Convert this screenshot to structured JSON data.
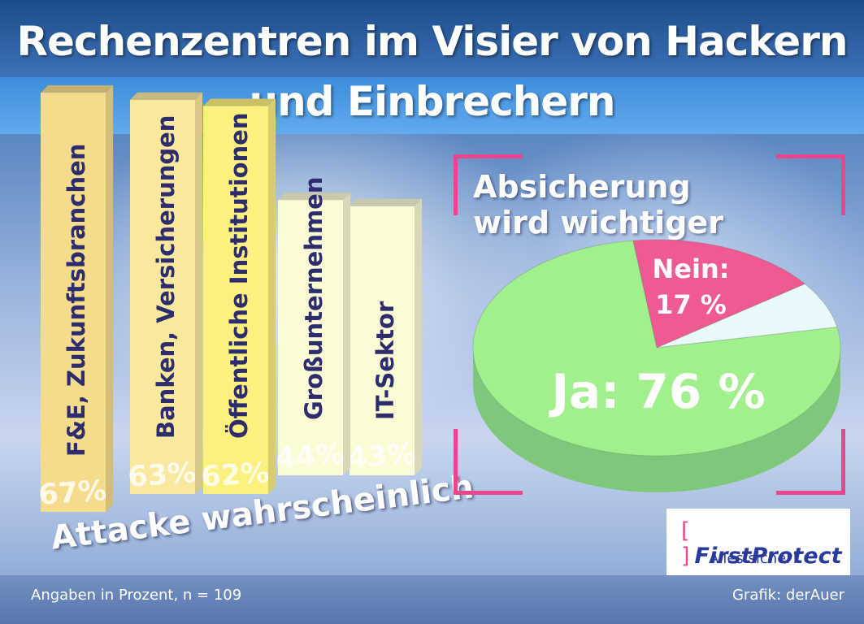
{
  "title": "Rechenzentren im Visier von Hackern und Einbrechern",
  "footer": {
    "source_note": "Angaben in Prozent, n = 109",
    "credit": "Grafik: derAuer"
  },
  "logo": {
    "name": "FirstProtect",
    "tagline": "Alles sicher!"
  },
  "colors": {
    "bar_1": "#f5dc8c",
    "bar_2": "#fae89e",
    "bar_3": "#fcf07f",
    "bar_4": "#fbfbd6",
    "bar_5": "#fbfbd6",
    "pie_ja": "#a2f08d",
    "pie_nein": "#ef5a95",
    "pie_rest": "#e9f8fb",
    "frame": "#e8478e"
  },
  "chart_data": [
    {
      "type": "bar",
      "xlabel": "Attacke wahrscheinlich",
      "categories": [
        "F&E, Zukunftsbranchen",
        "Banken, Versicherungen",
        "Öffentliche Institutionen",
        "Großunternehmen",
        "IT-Sektor"
      ],
      "values": [
        67,
        63,
        62,
        44,
        43
      ],
      "value_labels": [
        "67%",
        "63%",
        "62%",
        "44%",
        "43%"
      ],
      "ylim": [
        0,
        70
      ]
    },
    {
      "type": "pie",
      "title": "Absicherung wird wichtiger",
      "slices": [
        {
          "label": "Ja:",
          "value": 76,
          "display": "Ja: 76 %"
        },
        {
          "label": "Nein:",
          "value": 17,
          "display": "17 %"
        },
        {
          "label": "",
          "value": 7,
          "display": ""
        }
      ]
    }
  ]
}
